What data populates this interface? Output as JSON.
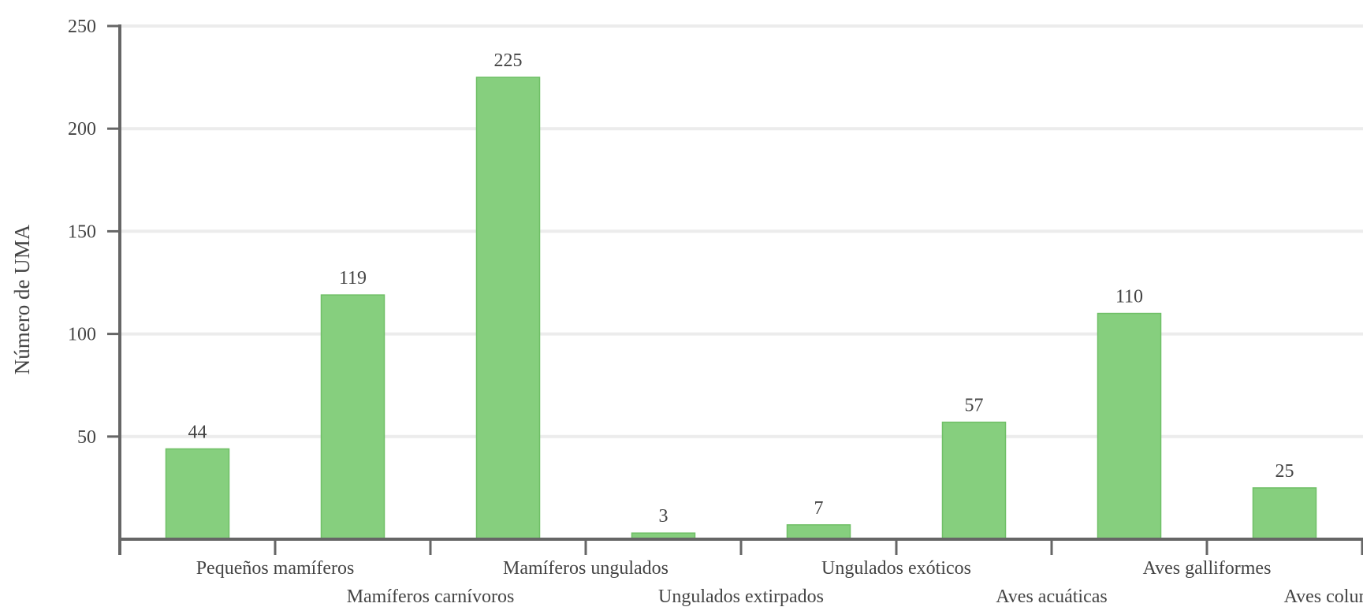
{
  "chart_data": {
    "type": "bar",
    "title": "",
    "xlabel": "",
    "ylabel": "Número de UMA",
    "ylim": [
      0,
      250
    ],
    "yticks": [
      50,
      100,
      150,
      200,
      250
    ],
    "ytick_labels": [
      "50",
      "100",
      "150",
      "200",
      "250"
    ],
    "grid": "horizontal",
    "categories": [
      "Pequeños mamíferos",
      "Mamíferos carnívoros",
      "Mamíferos ungulados",
      "Ungulados extirpados",
      "Ungulados exóticos",
      "Aves acuáticas",
      "Aves galliformes",
      "Aves columbiformes"
    ],
    "values": [
      44,
      119,
      225,
      3,
      7,
      57,
      110,
      25
    ],
    "data_labels": [
      "44",
      "119",
      "225",
      "3",
      "7",
      "57",
      "110",
      "25"
    ],
    "colors": {
      "bar": "#86cf7e",
      "bar_edge": "#6fbf66",
      "axis": "#666666",
      "grid": "#ececec",
      "text": "#444444"
    }
  }
}
